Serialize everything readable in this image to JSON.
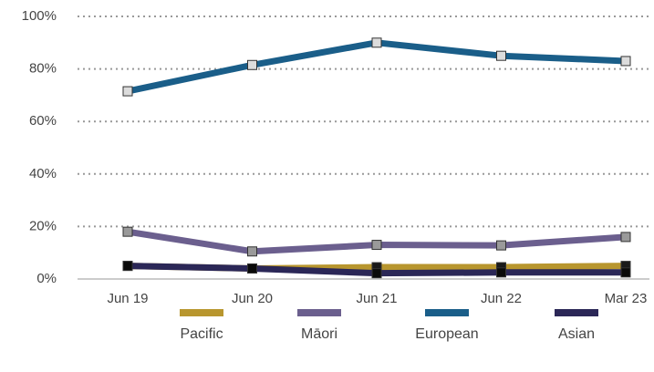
{
  "chart_data": {
    "type": "line",
    "categories": [
      "Jun 19",
      "Jun 20",
      "Jun 21",
      "Jun 22",
      "Mar 23"
    ],
    "series": [
      {
        "name": "European",
        "color": "#1a5e89",
        "marker_color": "#dcdcdc",
        "values": [
          71.5,
          81.5,
          90,
          85,
          83
        ]
      },
      {
        "name": "Māori",
        "color": "#6b5f8e",
        "marker_color": "#9a9a9a",
        "values": [
          18,
          10.5,
          13,
          12.8,
          16
        ]
      },
      {
        "name": "Pacific",
        "color": "#b8962e",
        "marker_color": "#1a1a1a",
        "values": [
          5,
          4,
          4.5,
          4.5,
          5
        ]
      },
      {
        "name": "Asian",
        "color": "#2b2757",
        "marker_color": "#0a0a0a",
        "values": [
          5,
          4,
          2.2,
          2.5,
          2.5
        ]
      }
    ],
    "legend_order": [
      2,
      1,
      0,
      3
    ],
    "ylim": [
      0,
      100
    ],
    "yticks": [
      {
        "value": 0,
        "label": "0%"
      },
      {
        "value": 20,
        "label": "20%"
      },
      {
        "value": 40,
        "label": "40%"
      },
      {
        "value": 60,
        "label": "60%"
      },
      {
        "value": 80,
        "label": "80%"
      },
      {
        "value": 100,
        "label": "100%"
      }
    ],
    "grid": true
  }
}
